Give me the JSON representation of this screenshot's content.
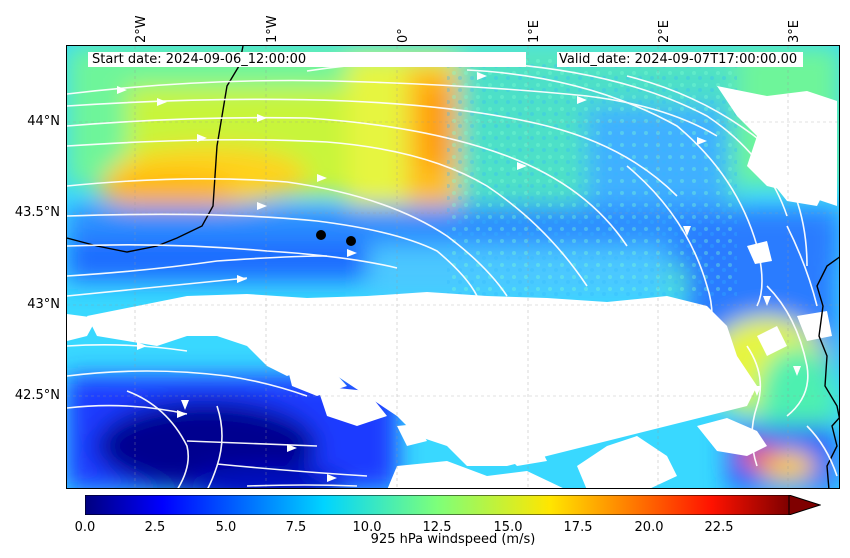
{
  "map": {
    "start_date": "Start date: 2024-09-06_12:00:00",
    "valid_date": "Valid_date: 2024-09-07T17:00:00.00",
    "longitude_labels": [
      "2°W",
      "1°W",
      "0°",
      "1°E",
      "2°E",
      "3°E"
    ],
    "latitude_labels": [
      "44°N",
      "43.5°N",
      "43°N",
      "42.5°N"
    ],
    "field": "925 hPa windspeed (m/s)",
    "colors": {
      "streamline": "#ffffff",
      "coastline": "#000000",
      "marker": "#000000"
    },
    "markers": [
      {
        "name": "site-marker-1"
      },
      {
        "name": "site-marker-2"
      }
    ]
  },
  "colorbar": {
    "label": "925 hPa windspeed (m/s)",
    "ticks": [
      "0.0",
      "2.5",
      "5.0",
      "7.5",
      "10.0",
      "12.5",
      "15.0",
      "17.5",
      "20.0",
      "22.5"
    ],
    "min": 0,
    "max": 25,
    "extend": "max",
    "colormap": "jet"
  }
}
